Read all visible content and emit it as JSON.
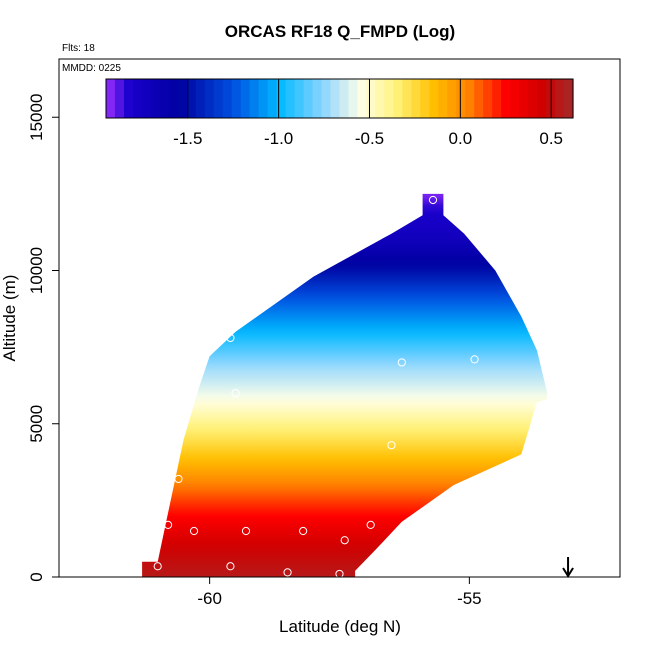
{
  "chart_data": {
    "type": "heatmap",
    "title": "ORCAS RF18 Q_FMPD (Log)",
    "flights_label": "Flts: 18",
    "date_label": "MMDD: 0225",
    "xlabel": "Latitude (deg N)",
    "ylabel": "Altitude (m)",
    "xlim": [
      -62.9,
      -52.1
    ],
    "ylim": [
      0,
      16900
    ],
    "x_ticks": [
      -60,
      -55
    ],
    "x_tick_labels": [
      "-60",
      "-55"
    ],
    "y_ticks": [
      0,
      5000,
      10000,
      15000
    ],
    "y_tick_labels": [
      "0",
      "5000",
      "10000",
      "15000"
    ],
    "colorbar": {
      "range": [
        -1.95,
        0.62
      ],
      "ticks": [
        -1.5,
        -1.0,
        -0.5,
        0.0,
        0.5
      ],
      "tick_labels": [
        "-1.5",
        "-1.0",
        "-0.5",
        "0.0",
        "0.5"
      ],
      "color_stops": [
        {
          "v": -1.95,
          "c": "#9b30ff"
        },
        {
          "v": -1.82,
          "c": "#1a00cc"
        },
        {
          "v": -1.55,
          "c": "#0000a0"
        },
        {
          "v": -1.25,
          "c": "#0050e0"
        },
        {
          "v": -1.0,
          "c": "#00b8ff"
        },
        {
          "v": -0.75,
          "c": "#8fd6ff"
        },
        {
          "v": -0.55,
          "c": "#ffffe8"
        },
        {
          "v": -0.35,
          "c": "#fff27a"
        },
        {
          "v": -0.15,
          "c": "#ffc000"
        },
        {
          "v": 0.05,
          "c": "#ff8000"
        },
        {
          "v": 0.25,
          "c": "#ff0000"
        },
        {
          "v": 0.45,
          "c": "#d00000"
        },
        {
          "v": 0.62,
          "c": "#a52a2a"
        }
      ]
    },
    "value_profile": [
      {
        "alt": 0,
        "v": 0.55
      },
      {
        "alt": 1000,
        "v": 0.45
      },
      {
        "alt": 2000,
        "v": 0.25
      },
      {
        "alt": 3000,
        "v": 0.05
      },
      {
        "alt": 4000,
        "v": -0.18
      },
      {
        "alt": 5000,
        "v": -0.38
      },
      {
        "alt": 5800,
        "v": -0.55
      },
      {
        "alt": 6800,
        "v": -0.72
      },
      {
        "alt": 8000,
        "v": -1.0
      },
      {
        "alt": 9000,
        "v": -1.22
      },
      {
        "alt": 10000,
        "v": -1.5
      },
      {
        "alt": 11000,
        "v": -1.72
      },
      {
        "alt": 12000,
        "v": -1.82
      },
      {
        "alt": 12500,
        "v": -1.93
      }
    ],
    "region_outline": [
      {
        "lat": -61.3,
        "alt": 0
      },
      {
        "lat": -61.3,
        "alt": 500
      },
      {
        "lat": -61.0,
        "alt": 500
      },
      {
        "lat": -60.5,
        "alt": 4500
      },
      {
        "lat": -60.2,
        "alt": 6200
      },
      {
        "lat": -60.0,
        "alt": 7200
      },
      {
        "lat": -59.5,
        "alt": 8000
      },
      {
        "lat": -58.0,
        "alt": 9800
      },
      {
        "lat": -56.5,
        "alt": 11200
      },
      {
        "lat": -55.9,
        "alt": 11800
      },
      {
        "lat": -55.9,
        "alt": 12500
      },
      {
        "lat": -55.5,
        "alt": 12500
      },
      {
        "lat": -55.5,
        "alt": 11800
      },
      {
        "lat": -55.1,
        "alt": 11200
      },
      {
        "lat": -54.5,
        "alt": 10000
      },
      {
        "lat": -54.0,
        "alt": 8500
      },
      {
        "lat": -53.7,
        "alt": 7400
      },
      {
        "lat": -53.5,
        "alt": 6000
      },
      {
        "lat": -53.5,
        "alt": 5800
      },
      {
        "lat": -53.7,
        "alt": 5700
      },
      {
        "lat": -54.0,
        "alt": 4000
      },
      {
        "lat": -55.3,
        "alt": 3000
      },
      {
        "lat": -56.3,
        "alt": 1800
      },
      {
        "lat": -56.8,
        "alt": 900
      },
      {
        "lat": -57.2,
        "alt": 200
      },
      {
        "lat": -57.2,
        "alt": 0
      }
    ],
    "sample_points": [
      {
        "lat": -55.7,
        "alt": 12300
      },
      {
        "lat": -53.9,
        "alt": 8800
      },
      {
        "lat": -59.6,
        "alt": 7800
      },
      {
        "lat": -56.3,
        "alt": 7000
      },
      {
        "lat": -54.9,
        "alt": 7100
      },
      {
        "lat": -59.5,
        "alt": 6000
      },
      {
        "lat": -53.8,
        "alt": 4500
      },
      {
        "lat": -56.5,
        "alt": 4300
      },
      {
        "lat": -60.6,
        "alt": 3200
      },
      {
        "lat": -60.8,
        "alt": 1700
      },
      {
        "lat": -60.3,
        "alt": 1500
      },
      {
        "lat": -59.3,
        "alt": 1500
      },
      {
        "lat": -58.2,
        "alt": 1500
      },
      {
        "lat": -56.9,
        "alt": 1700
      },
      {
        "lat": -57.4,
        "alt": 1200
      },
      {
        "lat": -61.0,
        "alt": 350
      },
      {
        "lat": -59.6,
        "alt": 350
      },
      {
        "lat": -58.5,
        "alt": 150
      },
      {
        "lat": -57.5,
        "alt": 100
      },
      {
        "lat": -56.6,
        "alt": 100
      }
    ],
    "marker": {
      "lat": -53.1,
      "symbol": "down-arrow"
    },
    "grid": false,
    "legend": "none"
  }
}
